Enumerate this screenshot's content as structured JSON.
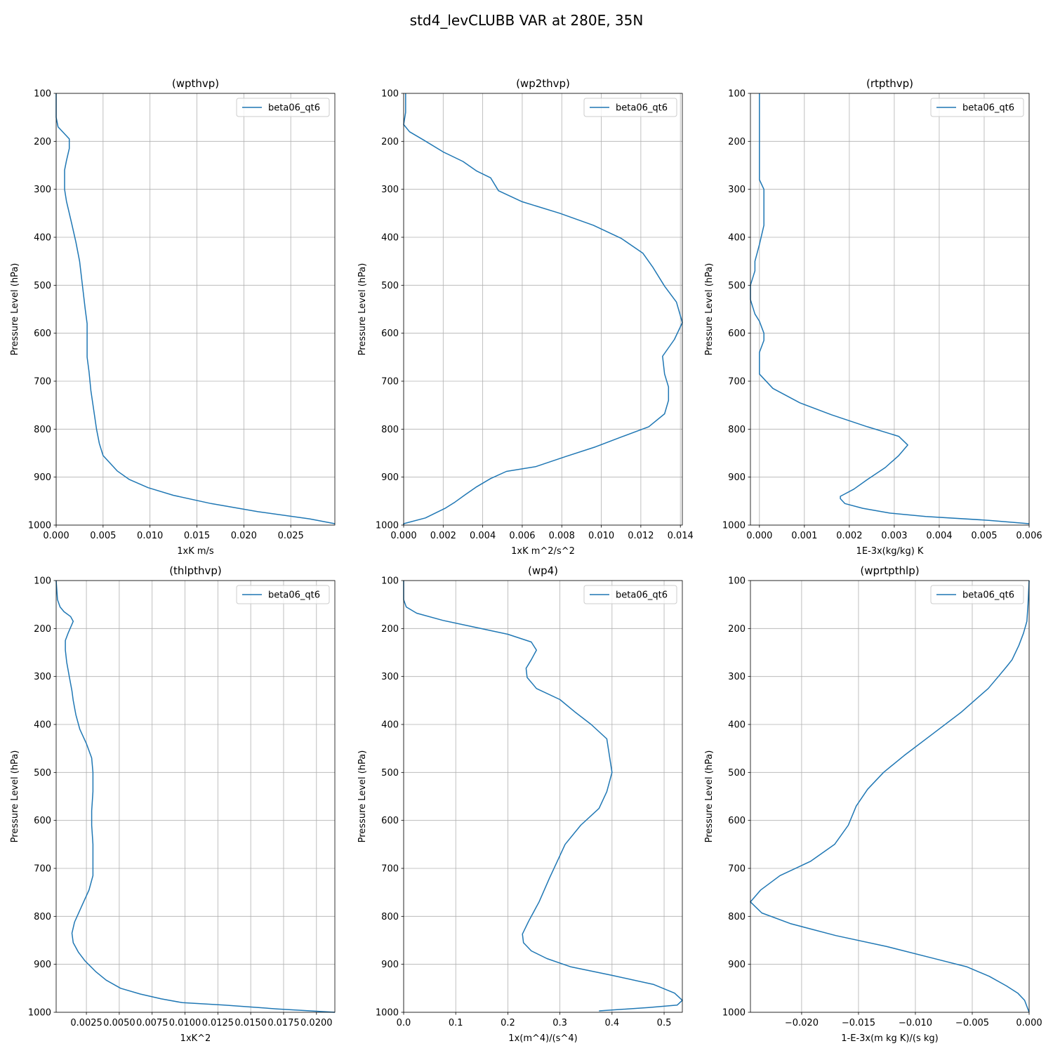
{
  "figure": {
    "title": "std4_levCLUBB VAR at 280E, 35N",
    "line_color": "#1f77b4"
  },
  "chart_data": [
    {
      "type": "line",
      "title": "(wpthvp)",
      "xlabel": "1xK m/s",
      "ylabel": "Pressure Level (hPa)",
      "xlim": [
        0,
        0.0297
      ],
      "ylim": [
        1000,
        100
      ],
      "xticks": [
        0,
        0.005,
        0.01,
        0.015,
        0.02,
        0.025
      ],
      "xticklabels": [
        "0.000",
        "0.005",
        "0.010",
        "0.015",
        "0.020",
        "0.025"
      ],
      "yticks": [
        100,
        200,
        300,
        400,
        500,
        600,
        700,
        800,
        900,
        1000
      ],
      "yticklabels": [
        "100",
        "200",
        "300",
        "400",
        "500",
        "600",
        "700",
        "800",
        "900",
        "1000"
      ],
      "grid": true,
      "legend_loc": "upper right",
      "series": [
        {
          "name": "beta06_qt6",
          "x": [
            0.0,
            0.0,
            0.0,
            0.0002,
            0.0014,
            0.0014,
            0.0011,
            0.0009,
            0.0009,
            0.0009,
            0.0011,
            0.0014,
            0.0017,
            0.0021,
            0.0025,
            0.0028,
            0.0031,
            0.0033,
            0.0033,
            0.0033,
            0.0035,
            0.0037,
            0.004,
            0.0043,
            0.0046,
            0.005,
            0.0058,
            0.0065,
            0.0078,
            0.0098,
            0.0125,
            0.0165,
            0.0215,
            0.027,
            0.0297
          ],
          "y": [
            100,
            120,
            150,
            170,
            195,
            215,
            240,
            260,
            280,
            300,
            325,
            350,
            375,
            410,
            450,
            500,
            550,
            580,
            610,
            650,
            680,
            720,
            760,
            800,
            830,
            855,
            872,
            887,
            905,
            922,
            938,
            955,
            972,
            987,
            997
          ]
        }
      ]
    },
    {
      "type": "line",
      "title": "(wp2thvp)",
      "xlabel": "1xK m^2/s^2",
      "ylabel": "Pressure Level (hPa)",
      "xlim": [
        0,
        0.0141
      ],
      "ylim": [
        1000,
        100
      ],
      "xticks": [
        0,
        0.002,
        0.004,
        0.006,
        0.008,
        0.01,
        0.012,
        0.014
      ],
      "xticklabels": [
        "0.000",
        "0.002",
        "0.004",
        "0.006",
        "0.008",
        "0.010",
        "0.012",
        "0.014"
      ],
      "yticks": [
        100,
        200,
        300,
        400,
        500,
        600,
        700,
        800,
        900,
        1000
      ],
      "yticklabels": [
        "100",
        "200",
        "300",
        "400",
        "500",
        "600",
        "700",
        "800",
        "900",
        "1000"
      ],
      "grid": true,
      "legend_loc": "upper right",
      "series": [
        {
          "name": "beta06_qt6",
          "x": [
            0.0001,
            0.0001,
            0.0,
            0.0003,
            0.001,
            0.002,
            0.003,
            0.0037,
            0.0044,
            0.0048,
            0.006,
            0.0079,
            0.0096,
            0.011,
            0.0121,
            0.0126,
            0.0132,
            0.0138,
            0.0141,
            0.0137,
            0.0131,
            0.0132,
            0.0134,
            0.0134,
            0.0132,
            0.0124,
            0.0111,
            0.0097,
            0.0082,
            0.0067,
            0.0052,
            0.0044,
            0.0037,
            0.0031,
            0.0026,
            0.0021,
            0.0016,
            0.0011,
            0.0,
            0.0
          ],
          "y": [
            100,
            140,
            165,
            180,
            197,
            222,
            242,
            262,
            276,
            303,
            326,
            350,
            375,
            402,
            433,
            462,
            502,
            535,
            578,
            613,
            648,
            685,
            712,
            740,
            768,
            795,
            815,
            837,
            857,
            878,
            888,
            903,
            920,
            937,
            952,
            965,
            975,
            985,
            997,
            1000
          ]
        }
      ]
    },
    {
      "type": "line",
      "title": "(rtpthvp)",
      "xlabel": "1E-3x(kg/kg) K",
      "ylabel": "Pressure Level (hPa)",
      "xlim": [
        -0.0002,
        0.006
      ],
      "ylim": [
        1000,
        100
      ],
      "xticks": [
        0,
        0.001,
        0.002,
        0.003,
        0.004,
        0.005,
        0.006
      ],
      "xticklabels": [
        "0.000",
        "0.001",
        "0.002",
        "0.003",
        "0.004",
        "0.005",
        "0.006"
      ],
      "yticks": [
        100,
        200,
        300,
        400,
        500,
        600,
        700,
        800,
        900,
        1000
      ],
      "yticklabels": [
        "100",
        "200",
        "300",
        "400",
        "500",
        "600",
        "700",
        "800",
        "900",
        "1000"
      ],
      "grid": true,
      "legend_loc": "upper right",
      "series": [
        {
          "name": "beta06_qt6",
          "x": [
            0.0,
            0.0,
            0.0,
            0.0,
            0.0,
            0.0,
            0.0001,
            0.0001,
            0.0001,
            0.0,
            -0.0001,
            -0.0001,
            -0.0002,
            -0.0002,
            -0.0001,
            0.0,
            0.0001,
            0.0001,
            0.0,
            0.0,
            0.0,
            0.0,
            0.0003,
            0.0009,
            0.0016,
            0.0024,
            0.0031,
            0.0033,
            0.0031,
            0.0028,
            0.0024,
            0.0021,
            0.0019,
            0.0018,
            0.0018,
            0.0019,
            0.0023,
            0.0029,
            0.0037,
            0.0051,
            0.006
          ],
          "y": [
            100,
            150,
            180,
            210,
            250,
            280,
            300,
            325,
            375,
            415,
            450,
            470,
            500,
            530,
            560,
            575,
            600,
            615,
            640,
            650,
            680,
            685,
            715,
            745,
            770,
            795,
            815,
            833,
            855,
            880,
            905,
            925,
            935,
            940,
            945,
            955,
            965,
            975,
            982,
            990,
            997
          ]
        }
      ]
    },
    {
      "type": "line",
      "title": "(thlpthvp)",
      "xlabel": "1xK^2",
      "ylabel": "Pressure Level (hPa)",
      "xlim": [
        0.0002,
        0.0214
      ],
      "ylim": [
        1000,
        100
      ],
      "xticks": [
        0.0025,
        0.005,
        0.0075,
        0.01,
        0.0125,
        0.015,
        0.0175,
        0.02
      ],
      "xticklabels": [
        "0.0025",
        "0.0050",
        "0.0075",
        "0.0100",
        "0.0125",
        "0.0150",
        "0.0175",
        "0.0200"
      ],
      "yticks": [
        100,
        200,
        300,
        400,
        500,
        600,
        700,
        800,
        900,
        1000
      ],
      "yticklabels": [
        "100",
        "200",
        "300",
        "400",
        "500",
        "600",
        "700",
        "800",
        "900",
        "1000"
      ],
      "grid": true,
      "legend_loc": "upper right",
      "series": [
        {
          "name": "beta06_qt6",
          "x": [
            0.0002,
            0.0003,
            0.0005,
            0.0008,
            0.0013,
            0.0015,
            0.0011,
            0.0009,
            0.0009,
            0.001,
            0.0012,
            0.0014,
            0.0015,
            0.0017,
            0.002,
            0.0025,
            0.0029,
            0.003,
            0.003,
            0.0029,
            0.0029,
            0.003,
            0.003,
            0.003,
            0.0027,
            0.0022,
            0.0016,
            0.0014,
            0.0015,
            0.0019,
            0.0024,
            0.0032,
            0.004,
            0.0051,
            0.0066,
            0.0082,
            0.0098,
            0.013,
            0.017,
            0.0214
          ],
          "y": [
            100,
            140,
            155,
            165,
            175,
            185,
            210,
            225,
            245,
            270,
            300,
            330,
            350,
            380,
            410,
            440,
            470,
            500,
            540,
            580,
            610,
            650,
            685,
            715,
            745,
            775,
            812,
            835,
            855,
            875,
            893,
            915,
            933,
            950,
            962,
            972,
            980,
            985,
            993,
            1000
          ]
        }
      ]
    },
    {
      "type": "line",
      "title": "(wp4)",
      "xlabel": "1x(m^4)/(s^4)",
      "ylabel": "Pressure Level (hPa)",
      "xlim": [
        0,
        0.535
      ],
      "ylim": [
        1000,
        100
      ],
      "xticks": [
        0,
        0.1,
        0.2,
        0.3,
        0.4,
        0.5
      ],
      "xticklabels": [
        "0.0",
        "0.1",
        "0.2",
        "0.3",
        "0.4",
        "0.5"
      ],
      "yticks": [
        100,
        200,
        300,
        400,
        500,
        600,
        700,
        800,
        900,
        1000
      ],
      "yticklabels": [
        "100",
        "200",
        "300",
        "400",
        "500",
        "600",
        "700",
        "800",
        "900",
        "1000"
      ],
      "grid": true,
      "legend_loc": "upper right",
      "series": [
        {
          "name": "beta06_qt6",
          "x": [
            0.0,
            0.0,
            0.005,
            0.025,
            0.075,
            0.14,
            0.2,
            0.245,
            0.255,
            0.245,
            0.235,
            0.237,
            0.255,
            0.3,
            0.33,
            0.36,
            0.39,
            0.395,
            0.4,
            0.39,
            0.375,
            0.34,
            0.31,
            0.295,
            0.28,
            0.26,
            0.24,
            0.228,
            0.23,
            0.245,
            0.275,
            0.32,
            0.4,
            0.48,
            0.52,
            0.535,
            0.525,
            0.47,
            0.375
          ],
          "y": [
            100,
            140,
            155,
            168,
            183,
            198,
            212,
            228,
            245,
            265,
            283,
            302,
            325,
            348,
            375,
            400,
            430,
            465,
            500,
            540,
            575,
            610,
            650,
            685,
            720,
            770,
            810,
            837,
            855,
            872,
            888,
            905,
            923,
            942,
            960,
            975,
            985,
            990,
            997
          ]
        }
      ]
    },
    {
      "type": "line",
      "title": "(wprtpthlp)",
      "xlabel": "1-E-3x(m kg K)/(s kg)",
      "ylabel": "Pressure Level (hPa)",
      "xlim": [
        -0.0245,
        0.0
      ],
      "ylim": [
        1000,
        100
      ],
      "xticks": [
        -0.02,
        -0.015,
        -0.01,
        -0.005,
        0.0
      ],
      "xticklabels": [
        "−0.020",
        "−0.015",
        "−0.010",
        "−0.005",
        "0.000"
      ],
      "yticks": [
        100,
        200,
        300,
        400,
        500,
        600,
        700,
        800,
        900,
        1000
      ],
      "yticklabels": [
        "100",
        "200",
        "300",
        "400",
        "500",
        "600",
        "700",
        "800",
        "900",
        "1000"
      ],
      "grid": true,
      "legend_loc": "upper right",
      "series": [
        {
          "name": "beta06_qt6",
          "x": [
            0.0,
            -0.0001,
            -0.0002,
            -0.0005,
            -0.0009,
            -0.0015,
            -0.002,
            -0.0027,
            -0.0036,
            -0.006,
            -0.0085,
            -0.011,
            -0.0128,
            -0.0142,
            -0.0152,
            -0.0159,
            -0.0171,
            -0.0192,
            -0.0219,
            -0.0236,
            -0.0245,
            -0.0235,
            -0.021,
            -0.017,
            -0.0125,
            -0.0085,
            -0.0055,
            -0.0035,
            -0.002,
            -0.001,
            -0.0004,
            0.0
          ],
          "y": [
            100,
            150,
            185,
            210,
            235,
            265,
            280,
            300,
            325,
            375,
            420,
            465,
            500,
            535,
            570,
            610,
            650,
            685,
            715,
            745,
            770,
            793,
            815,
            840,
            863,
            887,
            905,
            925,
            945,
            960,
            975,
            1000
          ]
        }
      ]
    }
  ]
}
